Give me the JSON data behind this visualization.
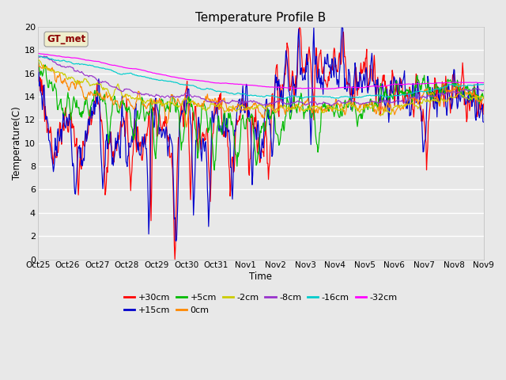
{
  "title": "Temperature Profile B",
  "xlabel": "Time",
  "ylabel": "Temperature(C)",
  "ylim": [
    0,
    20
  ],
  "background_color": "#e8e8e8",
  "gt_met_label": "GT_met",
  "gt_met_color": "#8B0000",
  "gt_met_bg": "#f0eecc",
  "series": [
    {
      "label": "+30cm",
      "color": "#ff0000"
    },
    {
      "label": "+15cm",
      "color": "#0000cc"
    },
    {
      "label": "+5cm",
      "color": "#00bb00"
    },
    {
      "label": "0cm",
      "color": "#ff8800"
    },
    {
      "label": "-2cm",
      "color": "#cccc00"
    },
    {
      "label": "-8cm",
      "color": "#9933cc"
    },
    {
      "label": "-16cm",
      "color": "#00cccc"
    },
    {
      "label": "-32cm",
      "color": "#ff00ff"
    }
  ],
  "xtick_labels": [
    "Oct 25",
    "Oct 26",
    "Oct 27",
    "Oct 28",
    "Oct 29",
    "Oct 30",
    "Oct 31",
    "Nov 1",
    "Nov 2",
    "Nov 3",
    "Nov 4",
    "Nov 5",
    "Nov 6",
    "Nov 7",
    "Nov 8",
    "Nov 9"
  ],
  "title_fontsize": 11,
  "n_days": 16,
  "pts_per_day": 48
}
